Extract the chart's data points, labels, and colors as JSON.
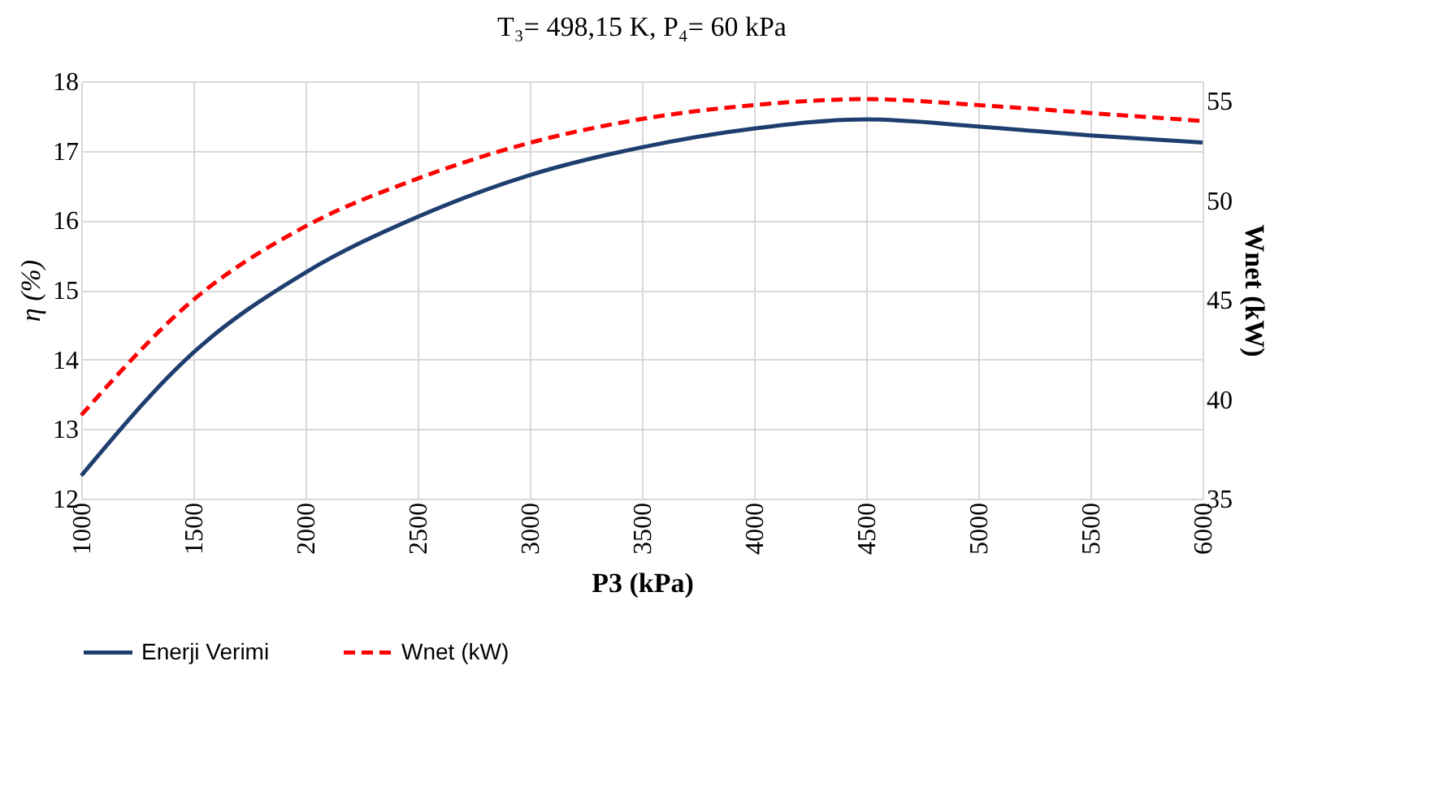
{
  "chart_data": {
    "type": "line",
    "title": "T₃= 498,15 K, P₄= 60 kPa",
    "xlabel": "P3 (kPa)",
    "ylabel": "η (%)",
    "y2label": "Wnet (kW)",
    "x": [
      1000,
      1500,
      2000,
      2500,
      3000,
      3500,
      4000,
      4500,
      5000,
      5500,
      6000
    ],
    "series": [
      {
        "name": "Enerji Verimi",
        "color": "#1f3e70",
        "line_style": "solid",
        "values": [
          12.33,
          14.1,
          15.25,
          16.05,
          16.65,
          17.05,
          17.32,
          17.45,
          17.35,
          17.22,
          17.12
        ]
      },
      {
        "name": "Wnet (kW)",
        "color": "#ff0000",
        "line_style": "dashed",
        "axis": "y2",
        "values": [
          39.2,
          45.0,
          48.7,
          51.1,
          52.9,
          54.1,
          54.8,
          55.1,
          54.8,
          54.4,
          54.0
        ]
      }
    ],
    "xlim": [
      1000,
      6000
    ],
    "xticks": [
      1000,
      1500,
      2000,
      2500,
      3000,
      3500,
      4000,
      4500,
      5000,
      5500,
      6000
    ],
    "ylim": [
      12,
      18
    ],
    "yticks": [
      12,
      13,
      14,
      15,
      16,
      17,
      18
    ],
    "y2lim": [
      35,
      56
    ],
    "y2ticks": [
      35,
      40,
      45,
      50,
      55
    ],
    "grid": true,
    "legend": "bottom",
    "marker": "none"
  }
}
